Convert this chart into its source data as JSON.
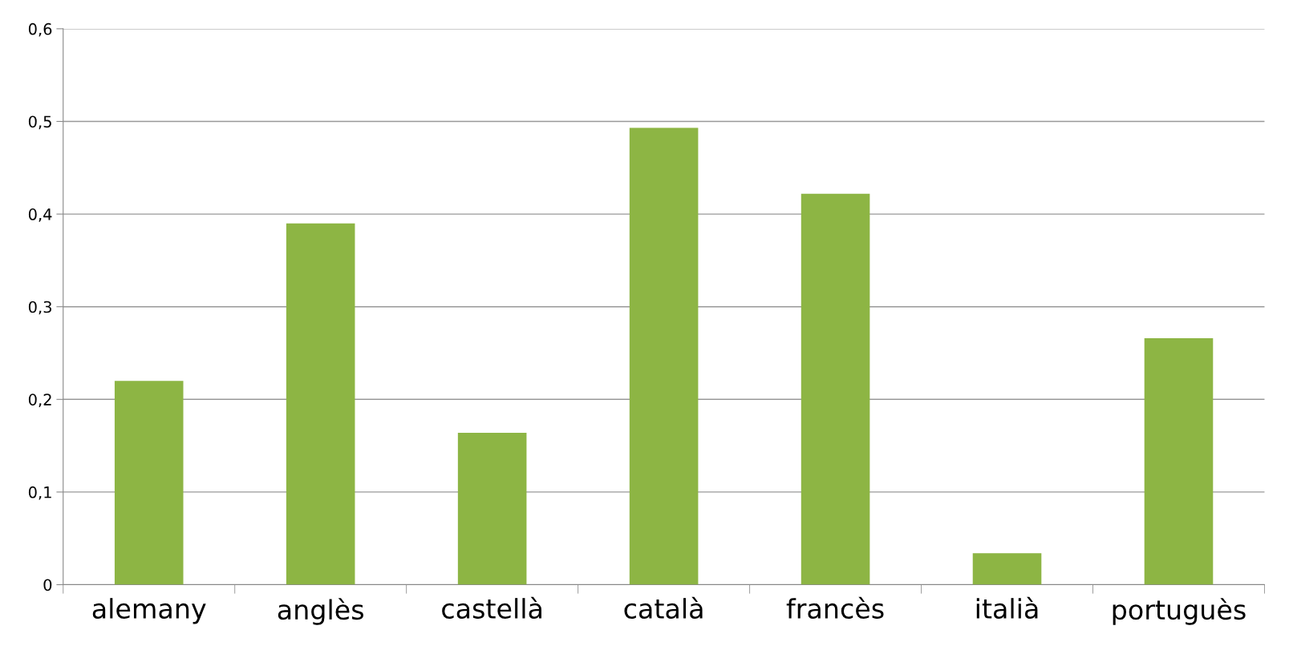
{
  "chart_data": {
    "type": "bar",
    "categories": [
      "alemany",
      "anglès",
      "castellà",
      "català",
      "francès",
      "italià",
      "portuguès"
    ],
    "values": [
      0.22,
      0.39,
      0.164,
      0.493,
      0.422,
      0.034,
      0.266
    ],
    "color": "#8db544",
    "ylim": [
      0,
      0.6
    ],
    "yticks": [
      {
        "value": 0,
        "label": "0"
      },
      {
        "value": 0.1,
        "label": "0,1"
      },
      {
        "value": 0.2,
        "label": "0,2"
      },
      {
        "value": 0.3,
        "label": "0,3"
      },
      {
        "value": 0.4,
        "label": "0,4"
      },
      {
        "value": 0.5,
        "label": "0,5"
      },
      {
        "value": 0.6,
        "label": "0,6"
      }
    ],
    "grid": "y"
  }
}
